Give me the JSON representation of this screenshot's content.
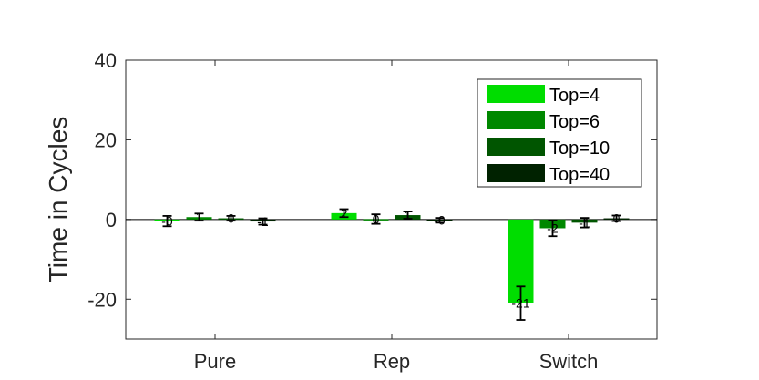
{
  "chart_data": {
    "type": "bar",
    "title": "",
    "xlabel": "",
    "ylabel": "Time in Cycles",
    "ylim": [
      -30,
      40
    ],
    "yticks": [
      -20,
      0,
      20,
      40
    ],
    "ytick_labels": [
      "-20",
      "0",
      "20",
      "40"
    ],
    "categories": [
      "Pure",
      "Rep",
      "Switch"
    ],
    "grid": false,
    "legend_position": "top-right",
    "series": [
      {
        "name": "Top=4",
        "color": "#00dd00",
        "values": [
          -0.4,
          1.6,
          -21.0
        ],
        "errors": [
          1.3,
          1.0,
          4.2
        ],
        "labels": [
          "-0",
          "2",
          "-21"
        ]
      },
      {
        "name": "Top=6",
        "color": "#008800",
        "values": [
          0.6,
          0.1,
          -2.2
        ],
        "errors": [
          0.9,
          1.2,
          2.0
        ],
        "labels": [
          "1",
          "0",
          "-2"
        ]
      },
      {
        "name": "Top=10",
        "color": "#005500",
        "values": [
          0.3,
          1.1,
          -0.8
        ],
        "errors": [
          0.6,
          0.9,
          1.2
        ],
        "labels": [
          "0",
          "1",
          "-1"
        ]
      },
      {
        "name": "Top=40",
        "color": "#002200",
        "values": [
          -0.5,
          -0.2,
          0.3
        ],
        "errors": [
          0.8,
          0.6,
          0.7
        ],
        "labels": [
          "-1",
          "-0",
          "0"
        ]
      }
    ]
  }
}
